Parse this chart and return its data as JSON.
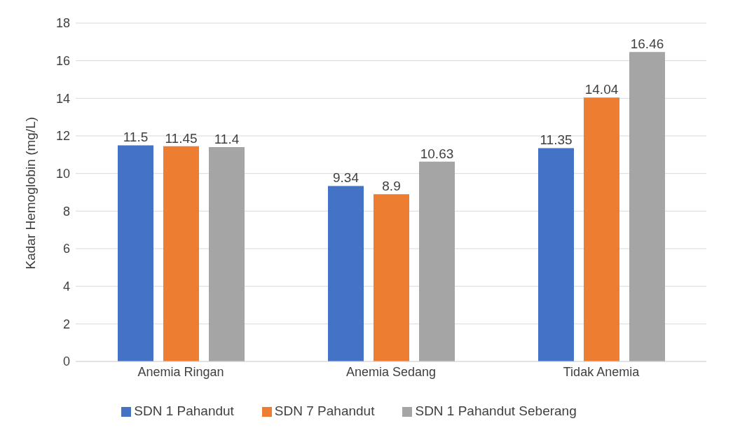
{
  "chart_data": {
    "type": "bar",
    "ylabel": "Kadar Hemoglobin (mg/L)",
    "categories": [
      "Anemia Ringan",
      "Anemia Sedang",
      "Tidak Anemia"
    ],
    "series": [
      {
        "name": "SDN 1 Pahandut",
        "color": "#4472c4",
        "values": [
          11.5,
          9.34,
          11.35
        ]
      },
      {
        "name": "SDN 7 Pahandut",
        "color": "#ed7d31",
        "values": [
          11.45,
          8.9,
          14.04
        ]
      },
      {
        "name": "SDN 1 Pahandut Seberang",
        "color": "#a5a5a5",
        "values": [
          11.4,
          10.63,
          16.46
        ]
      }
    ],
    "ylim": [
      0,
      18
    ],
    "yticks": [
      0,
      2,
      4,
      6,
      8,
      10,
      12,
      14,
      16,
      18
    ],
    "grid": "y",
    "legend": "bottom",
    "data_labels": true
  }
}
